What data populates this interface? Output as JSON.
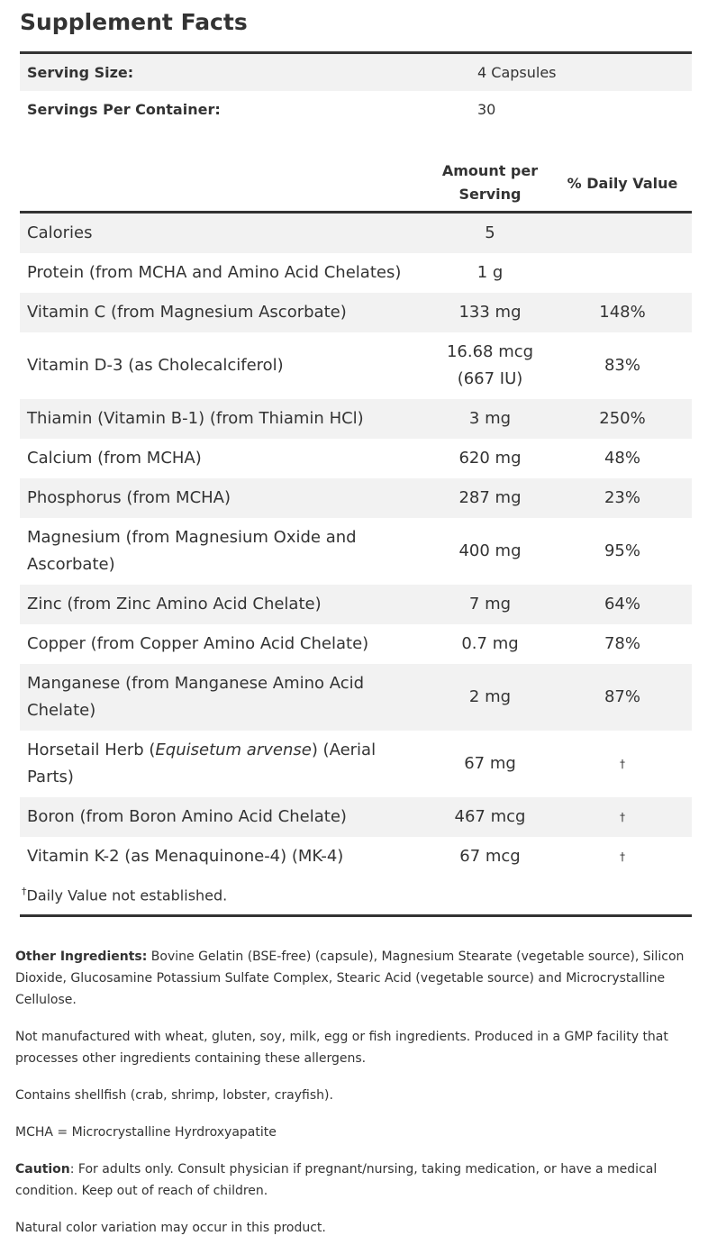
{
  "title": "Supplement Facts",
  "serving": {
    "rows": [
      [
        "Serving Size:",
        "4 Capsules"
      ],
      [
        "Servings Per Container:",
        "30"
      ]
    ]
  },
  "table": {
    "header": {
      "amount": "Amount per Serving",
      "dv": "% Daily Value"
    },
    "rows": [
      {
        "name": "Calories",
        "amount": "5"
      },
      {
        "name": "Protein (from MCHA and Amino Acid Chelates)",
        "amount": "1 g"
      },
      {
        "name": "Vitamin C (from Magnesium Ascorbate)",
        "amount": "133 mg",
        "dv": "148%"
      },
      {
        "name": "Vitamin D-3 (as Cholecalciferol)",
        "amount": "16.68 mcg (667 IU)",
        "dv": "83%"
      },
      {
        "name": "Thiamin (Vitamin B-1) (from Thiamin HCl)",
        "amount": "3 mg",
        "dv": "250%"
      },
      {
        "name": "Calcium (from MCHA)",
        "amount": "620 mg",
        "dv": "48%"
      },
      {
        "name": "Phosphorus (from MCHA)",
        "amount": "287 mg",
        "dv": "23%"
      },
      {
        "name": "Magnesium (from Magnesium Oxide and Ascorbate)",
        "amount": "400 mg",
        "dv": "95%"
      },
      {
        "name": "Zinc (from Zinc Amino Acid Chelate)",
        "amount": "7 mg",
        "dv": "64%"
      },
      {
        "name": "Copper (from Copper Amino Acid Chelate)",
        "amount": "0.7 mg",
        "dv": "78%"
      },
      {
        "name": "Manganese (from Manganese Amino Acid Chelate)",
        "amount": "2 mg",
        "dv": "87%"
      },
      {
        "name": [
          "Horsetail Herb (",
          "Equisetum arvense",
          ") (Aerial Parts)"
        ],
        "italic_index": 1,
        "amount": "67 mg",
        "dv": "†"
      },
      {
        "name": "Boron (from Boron Amino Acid Chelate)",
        "amount": "467 mcg",
        "dv": "†"
      },
      {
        "name": "Vitamin K-2 (as Menaquinone-4) (MK-4)",
        "amount": "67 mcg",
        "dv": "†"
      }
    ],
    "footnote": {
      "mark": "†",
      "text": "Daily Value not established."
    }
  },
  "notes": [
    {
      "label": "Other Ingredients:",
      "text": " Bovine Gelatin (BSE-free) (capsule), Magnesium Stearate (vegetable source), Silicon Dioxide, Glucosamine Potassium Sulfate Complex, Stearic Acid (vegetable source) and Microcrystalline Cellulose."
    },
    {
      "text": "Not manufactured with wheat, gluten, soy, milk, egg or fish ingredients. Produced in a GMP facility that processes other ingredients containing these allergens."
    },
    {
      "text": "Contains shellfish (crab, shrimp, lobster, crayfish)."
    },
    {
      "text": "MCHA = Microcrystalline Hyrdroxyapatite"
    },
    {
      "label": "Caution",
      "text": ": For adults only. Consult physician if pregnant/nursing, taking medication, or have a medical condition. Keep out of reach of children."
    },
    {
      "text": "Natural color variation may occur in this product."
    }
  ]
}
